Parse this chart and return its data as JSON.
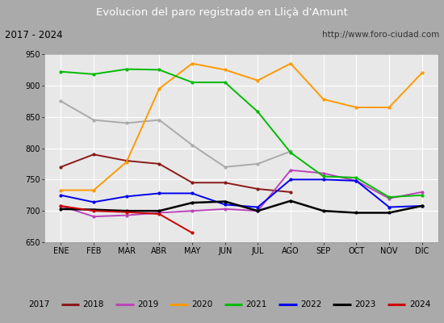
{
  "title": "Evolucion del paro registrado en Lliçà d'Amunt",
  "subtitle_left": "2017 - 2024",
  "subtitle_right": "http://www.foro-ciudad.com",
  "x_labels": [
    "ENE",
    "FEB",
    "MAR",
    "ABR",
    "MAY",
    "JUN",
    "JUL",
    "AGO",
    "SEP",
    "OCT",
    "NOV",
    "DIC"
  ],
  "ylim": [
    650,
    950
  ],
  "yticks": [
    650,
    700,
    750,
    800,
    850,
    900,
    950
  ],
  "series": {
    "2017": {
      "color": "#aaaaaa",
      "data": [
        875,
        845,
        840,
        845,
        805,
        770,
        775,
        795,
        null,
        null,
        null,
        null
      ]
    },
    "2018": {
      "color": "#8b1a1a",
      "data": [
        770,
        790,
        780,
        775,
        745,
        745,
        735,
        730,
        null,
        null,
        null,
        null
      ]
    },
    "2019": {
      "color": "#bb44bb",
      "data": [
        708,
        691,
        693,
        697,
        700,
        703,
        700,
        765,
        760,
        748,
        720,
        730
      ]
    },
    "2020": {
      "color": "#ff9900",
      "data": [
        733,
        733,
        778,
        895,
        935,
        925,
        908,
        935,
        878,
        865,
        865,
        920
      ]
    },
    "2021": {
      "color": "#00bb00",
      "data": [
        922,
        918,
        926,
        925,
        905,
        905,
        858,
        793,
        755,
        753,
        722,
        725
      ]
    },
    "2022": {
      "color": "#0000ee",
      "data": [
        725,
        714,
        723,
        728,
        728,
        710,
        706,
        750,
        750,
        748,
        706,
        708
      ]
    },
    "2023": {
      "color": "#000000",
      "data": [
        703,
        702,
        700,
        700,
        713,
        715,
        700,
        716,
        700,
        697,
        697,
        708
      ]
    },
    "2024": {
      "color": "#cc0000",
      "data": [
        708,
        700,
        698,
        695,
        665,
        null,
        null,
        null,
        null,
        null,
        null,
        null
      ]
    }
  },
  "title_bg_color": "#4488cc",
  "title_text_color": "#ffffff",
  "subtitle_bg_color": "#f0f0f0",
  "plot_bg_color": "#e8e8e8",
  "grid_color": "#ffffff",
  "legend_bg_color": "#f0f0f0",
  "outer_bg_color": "#aaaaaa"
}
